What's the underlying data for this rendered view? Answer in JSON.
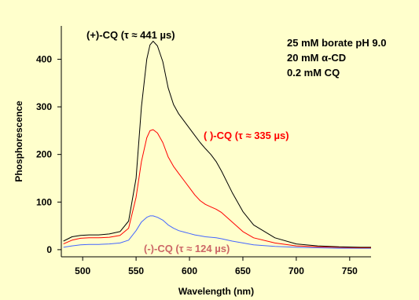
{
  "chart_data": {
    "type": "line",
    "xlabel": "Wavelength (nm)",
    "ylabel": "Phosphorescence",
    "xlim": [
      480,
      770
    ],
    "ylim": [
      -15,
      470
    ],
    "xticks": [
      500,
      550,
      600,
      650,
      700,
      750
    ],
    "yticks": [
      0,
      100,
      200,
      300,
      400
    ],
    "background": "#FFFFCC",
    "grid": false,
    "annotations": [
      "25 mM borate pH 9.0",
      "20 mM α-CD",
      "0.2 mM CQ"
    ],
    "series": [
      {
        "name": "(+)-CQ (τ ≈ 441 µs)",
        "color": "#000000",
        "label_color": "#000000",
        "x": [
          482,
          490,
          498,
          506,
          515,
          525,
          535,
          543,
          550,
          555,
          560,
          563,
          566,
          570,
          575,
          580,
          585,
          590,
          595,
          600,
          605,
          610,
          615,
          620,
          625,
          630,
          640,
          650,
          660,
          680,
          700,
          720,
          740,
          760,
          770
        ],
        "y": [
          18,
          27,
          30,
          31,
          31,
          33,
          38,
          60,
          150,
          300,
          400,
          430,
          438,
          428,
          395,
          340,
          305,
          285,
          270,
          255,
          240,
          225,
          212,
          200,
          185,
          165,
          120,
          80,
          52,
          25,
          12,
          8,
          6,
          5,
          5
        ]
      },
      {
        "name": "( )-CQ (τ ≈ 335 µs)",
        "color": "#FF0000",
        "label_color": "#FF0000",
        "x": [
          482,
          490,
          498,
          506,
          515,
          525,
          535,
          543,
          550,
          555,
          560,
          563,
          566,
          570,
          575,
          580,
          585,
          590,
          595,
          600,
          605,
          610,
          615,
          620,
          625,
          630,
          640,
          650,
          660,
          680,
          700,
          720,
          740,
          760,
          770
        ],
        "y": [
          12,
          20,
          24,
          25,
          25,
          26,
          30,
          45,
          110,
          185,
          235,
          250,
          252,
          245,
          225,
          195,
          175,
          160,
          145,
          130,
          115,
          103,
          95,
          90,
          85,
          78,
          58,
          38,
          25,
          14,
          8,
          6,
          5,
          4,
          4
        ]
      },
      {
        "name": "(-)-CQ (τ ≈ 124 µs)",
        "color": "#4466FF",
        "label_color": "#CC6666",
        "x": [
          482,
          490,
          498,
          506,
          515,
          525,
          535,
          543,
          550,
          555,
          560,
          563,
          566,
          570,
          575,
          580,
          585,
          590,
          595,
          600,
          605,
          610,
          615,
          620,
          625,
          630,
          640,
          650,
          660,
          680,
          700,
          720,
          740,
          760,
          770
        ],
        "y": [
          5,
          8,
          10,
          11,
          11,
          12,
          14,
          20,
          40,
          58,
          68,
          71,
          71,
          68,
          62,
          52,
          45,
          40,
          37,
          34,
          31,
          29,
          27,
          26,
          25,
          23,
          18,
          14,
          10,
          7,
          5,
          4,
          3,
          3,
          3
        ]
      }
    ]
  }
}
